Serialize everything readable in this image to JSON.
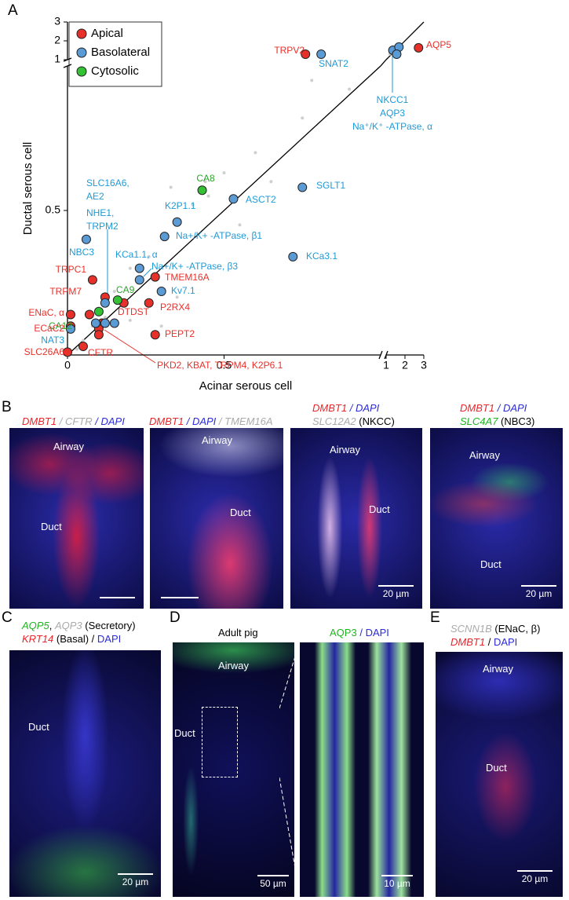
{
  "chart_data": {
    "type": "scatter",
    "panel_label": "A",
    "xlabel": "Acinar serous cell",
    "ylabel": "Ductal serous cell",
    "xlim": [
      0,
      3
    ],
    "ylim": [
      0,
      3
    ],
    "xticks": [
      0,
      0.5,
      1,
      2,
      3
    ],
    "yticks": [
      0,
      0.5,
      1,
      2,
      3
    ],
    "axis_break": 1,
    "diagonal": true,
    "legend": "upper left",
    "series": [
      {
        "color": "#cfcfcf",
        "x": [
          0.45,
          0.44,
          0.5,
          0.33,
          0.4,
          0.6,
          0.78,
          0.75,
          0.55,
          0.26,
          0.2,
          0.15,
          0.05,
          0.08,
          0.12,
          0.3,
          0.2,
          0.03,
          0.35,
          1.2,
          0.65,
          0.9
        ],
        "values": [
          0.55,
          0.6,
          0.63,
          0.58,
          0.52,
          0.7,
          0.95,
          0.82,
          0.45,
          0.34,
          0.3,
          0.22,
          0.05,
          0.1,
          0.13,
          0.1,
          0.12,
          0.02,
          0.2,
          1.3,
          0.6,
          0.92
        ]
      },
      {
        "name": "Apical",
        "color": "#e8302a",
        "x": [
          2.72,
          0.76,
          0.08,
          0.12,
          0.01,
          0.01,
          0.0,
          0.05,
          0.28,
          0.26,
          0.18,
          0.28,
          0.11,
          0.1,
          0.1,
          0.07
        ],
        "values": [
          1.63,
          1.29,
          0.26,
          0.2,
          0.14,
          0.1,
          0.01,
          0.03,
          0.27,
          0.18,
          0.18,
          0.07,
          0.11,
          0.09,
          0.07,
          0.14
        ]
      },
      {
        "name": "Basolateral",
        "color": "#5b9bd5",
        "x": [
          0.81,
          1.36,
          1.68,
          1.56,
          0.06,
          0.75,
          0.53,
          0.35,
          0.31,
          0.23,
          0.23,
          0.72,
          0.3,
          0.01,
          0.12,
          0.12,
          0.09,
          0.15
        ],
        "values": [
          1.29,
          1.5,
          1.67,
          1.29,
          0.4,
          0.58,
          0.54,
          0.46,
          0.41,
          0.3,
          0.26,
          0.34,
          0.22,
          0.09,
          0.18,
          0.11,
          0.11,
          0.11
        ]
      },
      {
        "name": "Cytosolic",
        "color": "#33c233",
        "x": [
          0.43,
          0.16,
          0.1
        ],
        "values": [
          0.57,
          0.19,
          0.15
        ]
      }
    ],
    "annotations": [
      {
        "text": "TRPV2",
        "color": "#e8302a"
      },
      {
        "text": "AQP5",
        "color": "#e8302a"
      },
      {
        "text": "SNAT2",
        "color": "#1e9ad6"
      },
      {
        "text": "NKCC1",
        "color": "#1e9ad6"
      },
      {
        "text": "AQP3",
        "color": "#1e9ad6"
      },
      {
        "text": "Na⁺/K⁺ -ATPase, α",
        "color": "#1e9ad6"
      },
      {
        "text": "SLC16A6,",
        "color": "#1e9ad6"
      },
      {
        "text": "AE2",
        "color": "#1e9ad6"
      },
      {
        "text": "NHE1,",
        "color": "#1e9ad6"
      },
      {
        "text": "TRPM2",
        "color": "#1e9ad6"
      },
      {
        "text": "CA8",
        "color": "#2aa52a"
      },
      {
        "text": "K2P1.1",
        "color": "#1e9ad6"
      },
      {
        "text": "ASCT2",
        "color": "#1e9ad6"
      },
      {
        "text": "SGLT1",
        "color": "#1e9ad6"
      },
      {
        "text": "NBC3",
        "color": "#1e9ad6"
      },
      {
        "text": "Na+/K+ -ATPase, β1",
        "color": "#1e9ad6"
      },
      {
        "text": "KCa1.1, α",
        "color": "#1e9ad6"
      },
      {
        "text": "Na+/K+ -ATPase, β3",
        "color": "#1e9ad6"
      },
      {
        "text": "KCa3.1",
        "color": "#1e9ad6"
      },
      {
        "text": "TRPC1",
        "color": "#e8302a"
      },
      {
        "text": "TMEM16A",
        "color": "#e8302a"
      },
      {
        "text": "TRPM7",
        "color": "#e8302a"
      },
      {
        "text": "CA9",
        "color": "#2aa52a"
      },
      {
        "text": "Kv7.1",
        "color": "#1e9ad6"
      },
      {
        "text": "ENaC, α",
        "color": "#e8302a"
      },
      {
        "text": "DTDST",
        "color": "#e8302a"
      },
      {
        "text": "P2RX4",
        "color": "#e8302a"
      },
      {
        "text": "CA12",
        "color": "#2aa52a"
      },
      {
        "text": "ECaC2",
        "color": "#e8302a"
      },
      {
        "text": "PEPT2",
        "color": "#e8302a"
      },
      {
        "text": "NAT3",
        "color": "#1e9ad6"
      },
      {
        "text": "SLC26A6",
        "color": "#e8302a"
      },
      {
        "text": "CFTR",
        "color": "#e8302a"
      },
      {
        "text": "PKD2, KBAT, TRPM4, K2P6.1",
        "color": "#e8302a"
      }
    ]
  },
  "panel_b": {
    "label": "B",
    "images": [
      {
        "caption": [
          [
            "DMBT1",
            "/",
            "CFTR",
            "/",
            "DAPI"
          ]
        ],
        "airway": "Airway",
        "duct": "Duct"
      },
      {
        "caption": [
          [
            "DMBT1",
            "/",
            "DAPI",
            "/",
            "TMEM16A"
          ]
        ],
        "airway": "Airway",
        "duct": "Duct"
      },
      {
        "caption": [
          [
            "DMBT1",
            "/",
            "DAPI"
          ],
          [
            "SLC12A2",
            "(NKCC)"
          ]
        ],
        "airway": "Airway",
        "duct": "Duct",
        "scale": "20 µm"
      },
      {
        "caption": [
          [
            "DMBT1",
            "/",
            "DAPI"
          ],
          [
            "SLC4A7",
            "(NBC3)"
          ]
        ],
        "airway": "Airway",
        "duct": "Duct",
        "scale": "20 µm"
      }
    ]
  },
  "panel_c": {
    "label": "C",
    "caption": [
      [
        "AQP5",
        ",",
        "AQP3",
        "(Secretory)"
      ],
      [
        "KRT14",
        "(Basal)",
        "/",
        "DAPI"
      ]
    ],
    "duct": "Duct",
    "scale": "20 µm"
  },
  "panel_d": {
    "label": "D",
    "title": "Adult pig",
    "caption": [
      "AQP3",
      "/",
      "DAPI"
    ],
    "airway": "Airway",
    "duct": "Duct",
    "scales": [
      "50 µm",
      "10 µm"
    ]
  },
  "panel_e": {
    "label": "E",
    "caption": [
      [
        "SCNN1B",
        "(ENaC, β)"
      ],
      [
        "DMBT1",
        "/",
        "DAPI"
      ]
    ],
    "airway": "Airway",
    "duct": "Duct",
    "scale": "20 µm"
  }
}
